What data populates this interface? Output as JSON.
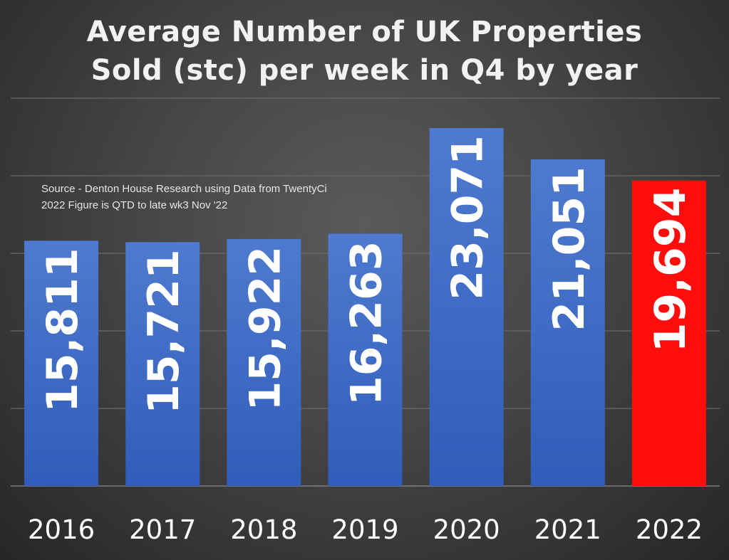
{
  "chart_data": {
    "type": "bar",
    "title": [
      "Average Number of UK Properties",
      "Sold (stc) per week in Q4 by year"
    ],
    "categories": [
      "2016",
      "2017",
      "2018",
      "2019",
      "2020",
      "2021",
      "2022"
    ],
    "values": [
      15811,
      15721,
      15922,
      16263,
      23071,
      21051,
      19694
    ],
    "value_labels": [
      "15,811",
      "15,721",
      "15,922",
      "16,263",
      "23,071",
      "21,051",
      "19,694"
    ],
    "bar_colors": [
      "#3a66c4",
      "#3a66c4",
      "#3a66c4",
      "#3a66c4",
      "#3a66c4",
      "#3a66c4",
      "#ff0d0d"
    ],
    "xlabel": "",
    "ylabel": "",
    "ylim": [
      0,
      25000
    ],
    "gridlines": [
      0,
      5000,
      10000,
      15000,
      20000,
      25000
    ],
    "grid": true,
    "annotations": [
      "Source - Denton House Research using Data from TwentyCi",
      "2022 Figure is QTD to late wk3 Nov '22"
    ]
  }
}
